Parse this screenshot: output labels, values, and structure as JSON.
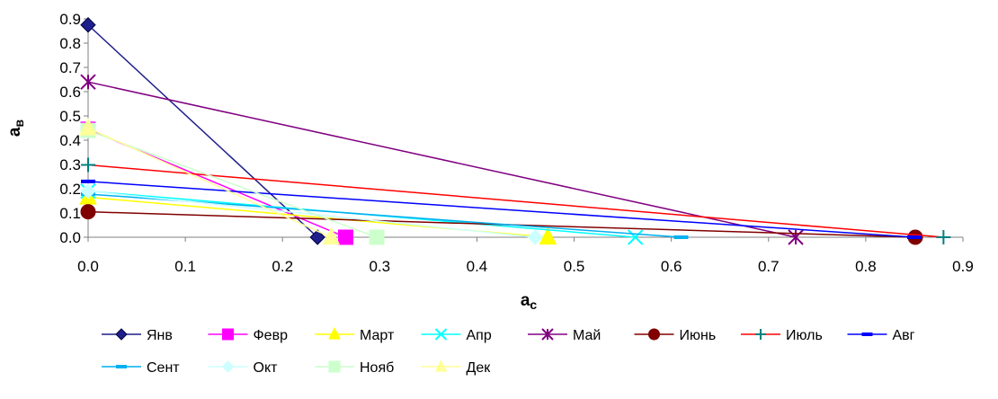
{
  "chart_data": {
    "type": "line",
    "xlabel": "a",
    "xlabel_sub": "c",
    "ylabel": "a",
    "ylabel_sub": "в",
    "xlim": [
      0,
      0.9
    ],
    "ylim": [
      0,
      0.9
    ],
    "xticks": [
      "0.0",
      "0.1",
      "0.2",
      "0.3",
      "0.4",
      "0.5",
      "0.6",
      "0.7",
      "0.8",
      "0.9"
    ],
    "yticks": [
      "0.0",
      "0.1",
      "0.2",
      "0.3",
      "0.4",
      "0.5",
      "0.6",
      "0.7",
      "0.8",
      "0.9"
    ],
    "grid": false,
    "legend_position": "bottom",
    "series": [
      {
        "name": "Янв",
        "color": "#1f1f8c",
        "marker": "diamond",
        "points": [
          [
            0,
            0.875
          ],
          [
            0.236,
            0
          ]
        ]
      },
      {
        "name": "Февр",
        "color": "#ff00ff",
        "marker": "square",
        "points": [
          [
            0,
            0.445
          ],
          [
            0.265,
            0
          ]
        ]
      },
      {
        "name": "Март",
        "color": "#ffff00",
        "marker": "triangle",
        "points": [
          [
            0,
            0.165
          ],
          [
            0.473,
            0
          ]
        ]
      },
      {
        "name": "Апр",
        "color": "#00ffff",
        "marker": "x",
        "points": [
          [
            0,
            0.19
          ],
          [
            0.563,
            0
          ]
        ]
      },
      {
        "name": "Май",
        "color": "#800080",
        "marker": "star",
        "points": [
          [
            0,
            0.64
          ],
          [
            0.728,
            0
          ]
        ]
      },
      {
        "name": "Июнь",
        "color": "#800000",
        "marker": "circle",
        "points": [
          [
            0,
            0.105
          ],
          [
            0.851,
            0
          ]
        ]
      },
      {
        "name": "Июль",
        "color": "#ff0000",
        "marker": "plus",
        "marker_color": "#008080",
        "points": [
          [
            0,
            0.298
          ],
          [
            0.88,
            0
          ]
        ]
      },
      {
        "name": "Авг",
        "color": "#0000ff",
        "marker": "dash",
        "points": [
          [
            0,
            0.23
          ],
          [
            0.85,
            0
          ]
        ]
      },
      {
        "name": "Сент",
        "color": "#00b0f0",
        "marker": "dash",
        "points": [
          [
            0,
            0.178
          ],
          [
            0.61,
            0
          ]
        ]
      },
      {
        "name": "Окт",
        "color": "#ccffff",
        "marker": "diamond",
        "marker_color": "#ccffff",
        "points": [
          [
            0,
            0.19
          ],
          [
            0.46,
            0
          ]
        ]
      },
      {
        "name": "Нояб",
        "color": "#ccffcc",
        "marker": "square",
        "points": [
          [
            0,
            0.44
          ],
          [
            0.297,
            0
          ]
        ]
      },
      {
        "name": "Дек",
        "color": "#ffff99",
        "marker": "triangle",
        "points": [
          [
            0,
            0.45
          ],
          [
            0.25,
            0
          ]
        ]
      }
    ]
  }
}
